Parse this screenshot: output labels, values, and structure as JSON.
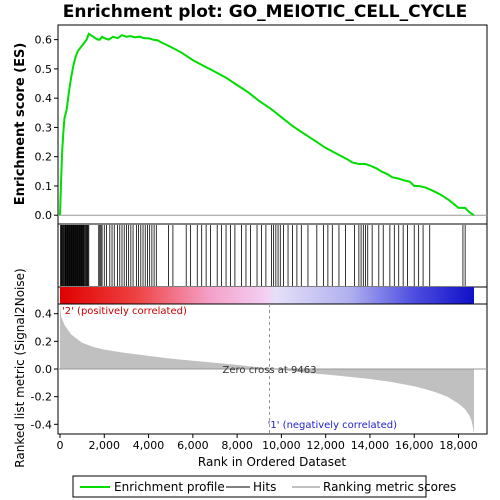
{
  "chart_data": {
    "type": "line",
    "title": "Enrichment plot: GO_MEIOTIC_CELL_CYCLE",
    "xlabel": "Rank in Ordered Dataset",
    "ylabel_top": "Enrichment score (ES)",
    "ylabel_bottom": "Ranked list metric (Signal2Noise)",
    "x_ticks": [
      0,
      2000,
      4000,
      6000,
      8000,
      10000,
      12000,
      14000,
      16000,
      18000
    ],
    "x_tick_labels": [
      "0",
      "2,000",
      "4,000",
      "6,000",
      "8,000",
      "10,000",
      "12,000",
      "14,000",
      "16,000",
      "18,000"
    ],
    "xlim": [
      0,
      18700
    ],
    "es_ylim": [
      -0.03,
      0.65
    ],
    "es_ticks": [
      0.0,
      0.1,
      0.2,
      0.3,
      0.4,
      0.5,
      0.6
    ],
    "es_tick_labels": [
      "0.0",
      "0.1",
      "0.2",
      "0.3",
      "0.4",
      "0.5",
      "0.6"
    ],
    "metric_ylim": [
      -0.47,
      0.47
    ],
    "metric_ticks": [
      0.4,
      0.2,
      0.0,
      -0.2,
      -0.4
    ],
    "metric_tick_labels": [
      "0.4",
      "0.2",
      "0.0",
      "-0.2",
      "-0.4"
    ],
    "zero_cross": 9463,
    "zero_cross_label": "Zero cross at 9463",
    "pos_label": "'2' (positively correlated)",
    "neg_label": "'1' (negatively correlated)",
    "series": [
      {
        "name": "Enrichment profile",
        "color": "#00dd00",
        "x": [
          0,
          50,
          100,
          150,
          200,
          300,
          400,
          500,
          600,
          700,
          800,
          900,
          1000,
          1100,
          1200,
          1300,
          1400,
          1500,
          1600,
          1700,
          1800,
          1900,
          2000,
          2200,
          2400,
          2600,
          2800,
          3000,
          3200,
          3400,
          3600,
          3800,
          4000,
          4200,
          4400,
          4600,
          5000,
          5500,
          6000,
          6500,
          7000,
          7500,
          8000,
          8500,
          9000,
          9500,
          10000,
          10500,
          11000,
          11500,
          12000,
          12500,
          13000,
          13200,
          13500,
          13800,
          14000,
          14300,
          14500,
          14800,
          15000,
          15300,
          15500,
          15800,
          16000,
          16200,
          16500,
          16800,
          17200,
          17600,
          18000,
          18300,
          18500,
          18700
        ],
        "y": [
          0.0,
          0.12,
          0.22,
          0.28,
          0.33,
          0.36,
          0.42,
          0.47,
          0.51,
          0.54,
          0.56,
          0.57,
          0.58,
          0.59,
          0.6,
          0.62,
          0.615,
          0.61,
          0.605,
          0.6,
          0.6,
          0.61,
          0.605,
          0.6,
          0.61,
          0.605,
          0.615,
          0.61,
          0.612,
          0.608,
          0.61,
          0.605,
          0.605,
          0.6,
          0.598,
          0.59,
          0.575,
          0.555,
          0.53,
          0.51,
          0.49,
          0.47,
          0.445,
          0.42,
          0.39,
          0.365,
          0.335,
          0.305,
          0.28,
          0.255,
          0.23,
          0.21,
          0.19,
          0.18,
          0.175,
          0.175,
          0.17,
          0.16,
          0.15,
          0.14,
          0.13,
          0.125,
          0.12,
          0.115,
          0.1,
          0.1,
          0.095,
          0.085,
          0.07,
          0.05,
          0.025,
          0.025,
          0.01,
          0.0
        ]
      },
      {
        "name": "Hits",
        "color": "#000000",
        "positions": [
          20,
          60,
          90,
          130,
          160,
          190,
          230,
          260,
          290,
          320,
          350,
          380,
          410,
          440,
          470,
          500,
          530,
          560,
          590,
          620,
          650,
          680,
          710,
          740,
          770,
          800,
          830,
          860,
          890,
          920,
          950,
          980,
          1010,
          1040,
          1070,
          1100,
          1140,
          1180,
          1220,
          1260,
          1300,
          1750,
          1800,
          1850,
          1900,
          2000,
          2100,
          2250,
          2350,
          2450,
          2600,
          2700,
          2800,
          2900,
          3000,
          3100,
          3200,
          3300,
          3450,
          3550,
          3650,
          3750,
          3850,
          3950,
          4050,
          4150,
          4250,
          4350,
          4900,
          5100,
          5700,
          5900,
          6200,
          6400,
          6600,
          6800,
          7100,
          7300,
          7500,
          7700,
          7900,
          8200,
          8400,
          8600,
          8900,
          9100,
          9300,
          9550,
          9650,
          9750,
          9850,
          9950,
          10100,
          10300,
          10500,
          10700,
          10900,
          11200,
          11600,
          11900,
          12100,
          12300,
          12600,
          12900,
          13300,
          13500,
          13600,
          13700,
          13800,
          13900,
          14100,
          14400,
          14600,
          14900,
          15100,
          15300,
          15500,
          15700,
          16000,
          16200,
          16400,
          16700,
          18200,
          18300
        ]
      },
      {
        "name": "Ranking metric scores",
        "color": "#c0c0c0",
        "x": [
          0,
          50,
          200,
          500,
          1000,
          1500,
          2000,
          3000,
          4000,
          5000,
          6000,
          7000,
          8000,
          9000,
          9463,
          10000,
          11000,
          12000,
          13000,
          14000,
          15000,
          16000,
          16500,
          17000,
          17500,
          18000,
          18300,
          18500,
          18600,
          18650,
          18700
        ],
        "y": [
          0.47,
          0.38,
          0.32,
          0.25,
          0.19,
          0.16,
          0.14,
          0.115,
          0.095,
          0.075,
          0.06,
          0.045,
          0.03,
          0.012,
          0.0,
          -0.008,
          -0.025,
          -0.04,
          -0.055,
          -0.072,
          -0.095,
          -0.125,
          -0.145,
          -0.17,
          -0.2,
          -0.25,
          -0.29,
          -0.34,
          -0.38,
          -0.42,
          -0.47
        ]
      }
    ],
    "legend": [
      "Enrichment profile",
      "Hits",
      "Ranking metric scores"
    ],
    "legend_placement": "bottom",
    "grid": false
  }
}
